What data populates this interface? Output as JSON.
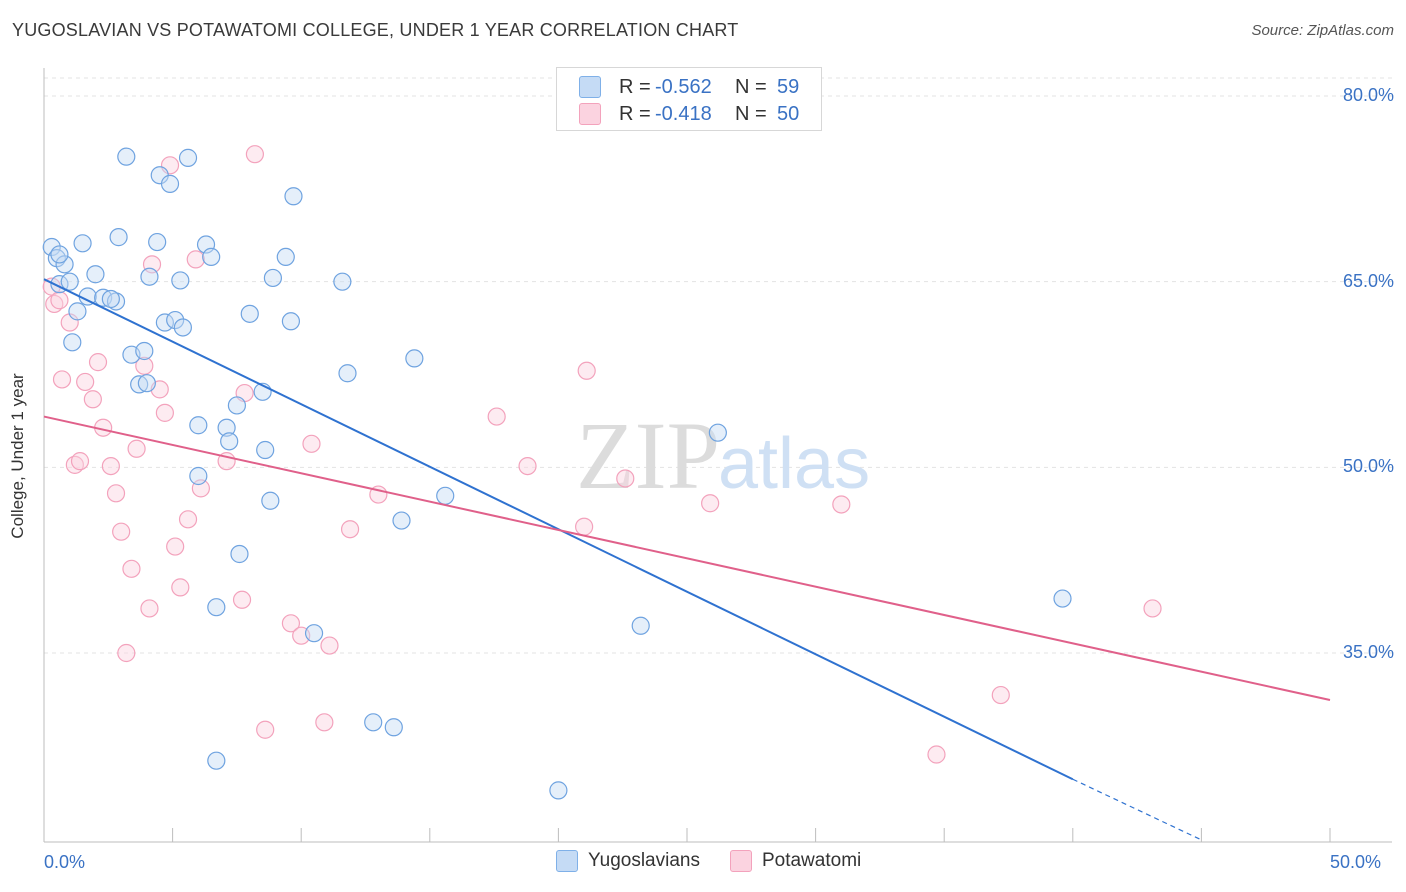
{
  "header": {
    "title": "YUGOSLAVIAN VS POTAWATOMI COLLEGE, UNDER 1 YEAR CORRELATION CHART",
    "source": "Source: ZipAtlas.com"
  },
  "watermark": {
    "zip": "ZIP",
    "atlas": "atlas"
  },
  "legend": {
    "rows": [
      {
        "r_label": "R =",
        "r_value": "-0.562",
        "n_label": "N =",
        "n_value": "59"
      },
      {
        "r_label": "R =",
        "r_value": "-0.418",
        "n_label": "N =",
        "n_value": "50"
      }
    ]
  },
  "chart_data": {
    "type": "scatter",
    "title": "YUGOSLAVIAN VS POTAWATOMI COLLEGE, UNDER 1 YEAR CORRELATION CHART",
    "xlabel": "",
    "ylabel": "College, Under 1 year",
    "xlim": [
      0,
      50
    ],
    "ylim": [
      20,
      83
    ],
    "x_tick_labels": [
      "0.0%",
      "50.0%"
    ],
    "y_ticks": [
      35,
      50,
      65,
      80
    ],
    "y_tick_labels": [
      "35.0%",
      "50.0%",
      "65.0%",
      "80.0%"
    ],
    "grid": true,
    "series": [
      {
        "name": "Yugoslavians",
        "color": "#7fb0e8",
        "line_color": "#2f72d0",
        "r": -0.562,
        "n": 59,
        "trend": {
          "x0": 0,
          "y0": 65.2,
          "x1": 40,
          "y1": 24.8,
          "dash_to_x": 45,
          "dash_to_y": 19.9
        },
        "points": [
          [
            0.3,
            67.8
          ],
          [
            0.5,
            66.9
          ],
          [
            0.6,
            64.8
          ],
          [
            0.8,
            66.4
          ],
          [
            1.1,
            60.1
          ],
          [
            1.3,
            62.6
          ],
          [
            1.5,
            68.1
          ],
          [
            1.7,
            63.8
          ],
          [
            2.0,
            65.6
          ],
          [
            2.3,
            63.7
          ],
          [
            2.8,
            63.4
          ],
          [
            2.9,
            68.6
          ],
          [
            3.2,
            75.1
          ],
          [
            3.4,
            59.1
          ],
          [
            3.7,
            56.7
          ],
          [
            3.9,
            59.4
          ],
          [
            4.1,
            65.4
          ],
          [
            4.4,
            68.2
          ],
          [
            4.5,
            73.6
          ],
          [
            4.7,
            61.7
          ],
          [
            4.9,
            72.9
          ],
          [
            5.1,
            61.9
          ],
          [
            5.3,
            65.1
          ],
          [
            5.4,
            61.3
          ],
          [
            5.6,
            75.0
          ],
          [
            6.0,
            53.4
          ],
          [
            6.0,
            49.3
          ],
          [
            6.3,
            68.0
          ],
          [
            6.5,
            67.0
          ],
          [
            6.7,
            38.7
          ],
          [
            6.7,
            26.3
          ],
          [
            7.1,
            53.2
          ],
          [
            7.2,
            52.1
          ],
          [
            7.5,
            55.0
          ],
          [
            7.6,
            43.0
          ],
          [
            8.0,
            62.4
          ],
          [
            8.5,
            56.1
          ],
          [
            8.6,
            51.4
          ],
          [
            8.8,
            47.3
          ],
          [
            8.9,
            65.3
          ],
          [
            9.4,
            67.0
          ],
          [
            9.6,
            61.8
          ],
          [
            9.7,
            71.9
          ],
          [
            10.5,
            36.6
          ],
          [
            11.6,
            65.0
          ],
          [
            11.8,
            57.6
          ],
          [
            12.8,
            29.4
          ],
          [
            13.6,
            29.0
          ],
          [
            13.9,
            45.7
          ],
          [
            14.4,
            58.8
          ],
          [
            15.6,
            47.7
          ],
          [
            20.0,
            23.9
          ],
          [
            23.2,
            37.2
          ],
          [
            26.2,
            52.8
          ],
          [
            39.6,
            39.4
          ],
          [
            0.6,
            67.2
          ],
          [
            2.6,
            63.6
          ],
          [
            4.0,
            56.8
          ],
          [
            1.0,
            65.0
          ]
        ]
      },
      {
        "name": "Potawatomi",
        "color": "#f3a2bc",
        "line_color": "#e0608a",
        "r": -0.418,
        "n": 50,
        "trend": {
          "x0": 0,
          "y0": 54.1,
          "x1": 50,
          "y1": 31.2
        },
        "points": [
          [
            0.3,
            64.6
          ],
          [
            0.4,
            63.2
          ],
          [
            0.6,
            63.5
          ],
          [
            0.7,
            57.1
          ],
          [
            1.0,
            61.7
          ],
          [
            1.2,
            50.2
          ],
          [
            1.4,
            50.5
          ],
          [
            1.6,
            56.9
          ],
          [
            1.9,
            55.5
          ],
          [
            2.1,
            58.5
          ],
          [
            2.3,
            53.2
          ],
          [
            2.6,
            50.1
          ],
          [
            2.8,
            47.9
          ],
          [
            3.0,
            44.8
          ],
          [
            3.2,
            35.0
          ],
          [
            3.4,
            41.8
          ],
          [
            3.6,
            51.5
          ],
          [
            3.9,
            58.2
          ],
          [
            4.1,
            38.6
          ],
          [
            4.2,
            66.4
          ],
          [
            4.5,
            56.3
          ],
          [
            4.7,
            54.4
          ],
          [
            4.9,
            74.4
          ],
          [
            5.1,
            43.6
          ],
          [
            5.3,
            40.3
          ],
          [
            5.6,
            45.8
          ],
          [
            5.9,
            66.8
          ],
          [
            6.1,
            48.3
          ],
          [
            7.1,
            50.5
          ],
          [
            7.7,
            39.3
          ],
          [
            7.8,
            56.0
          ],
          [
            8.2,
            75.3
          ],
          [
            8.6,
            28.8
          ],
          [
            9.6,
            37.4
          ],
          [
            10.0,
            36.4
          ],
          [
            10.4,
            51.9
          ],
          [
            10.9,
            29.4
          ],
          [
            11.1,
            35.6
          ],
          [
            11.9,
            45.0
          ],
          [
            13.0,
            47.8
          ],
          [
            17.6,
            54.1
          ],
          [
            18.8,
            50.1
          ],
          [
            21.0,
            45.2
          ],
          [
            21.1,
            57.8
          ],
          [
            22.6,
            49.1
          ],
          [
            25.9,
            47.1
          ],
          [
            31.0,
            47.0
          ],
          [
            34.7,
            26.8
          ],
          [
            37.2,
            31.6
          ],
          [
            43.1,
            38.6
          ]
        ]
      }
    ]
  }
}
